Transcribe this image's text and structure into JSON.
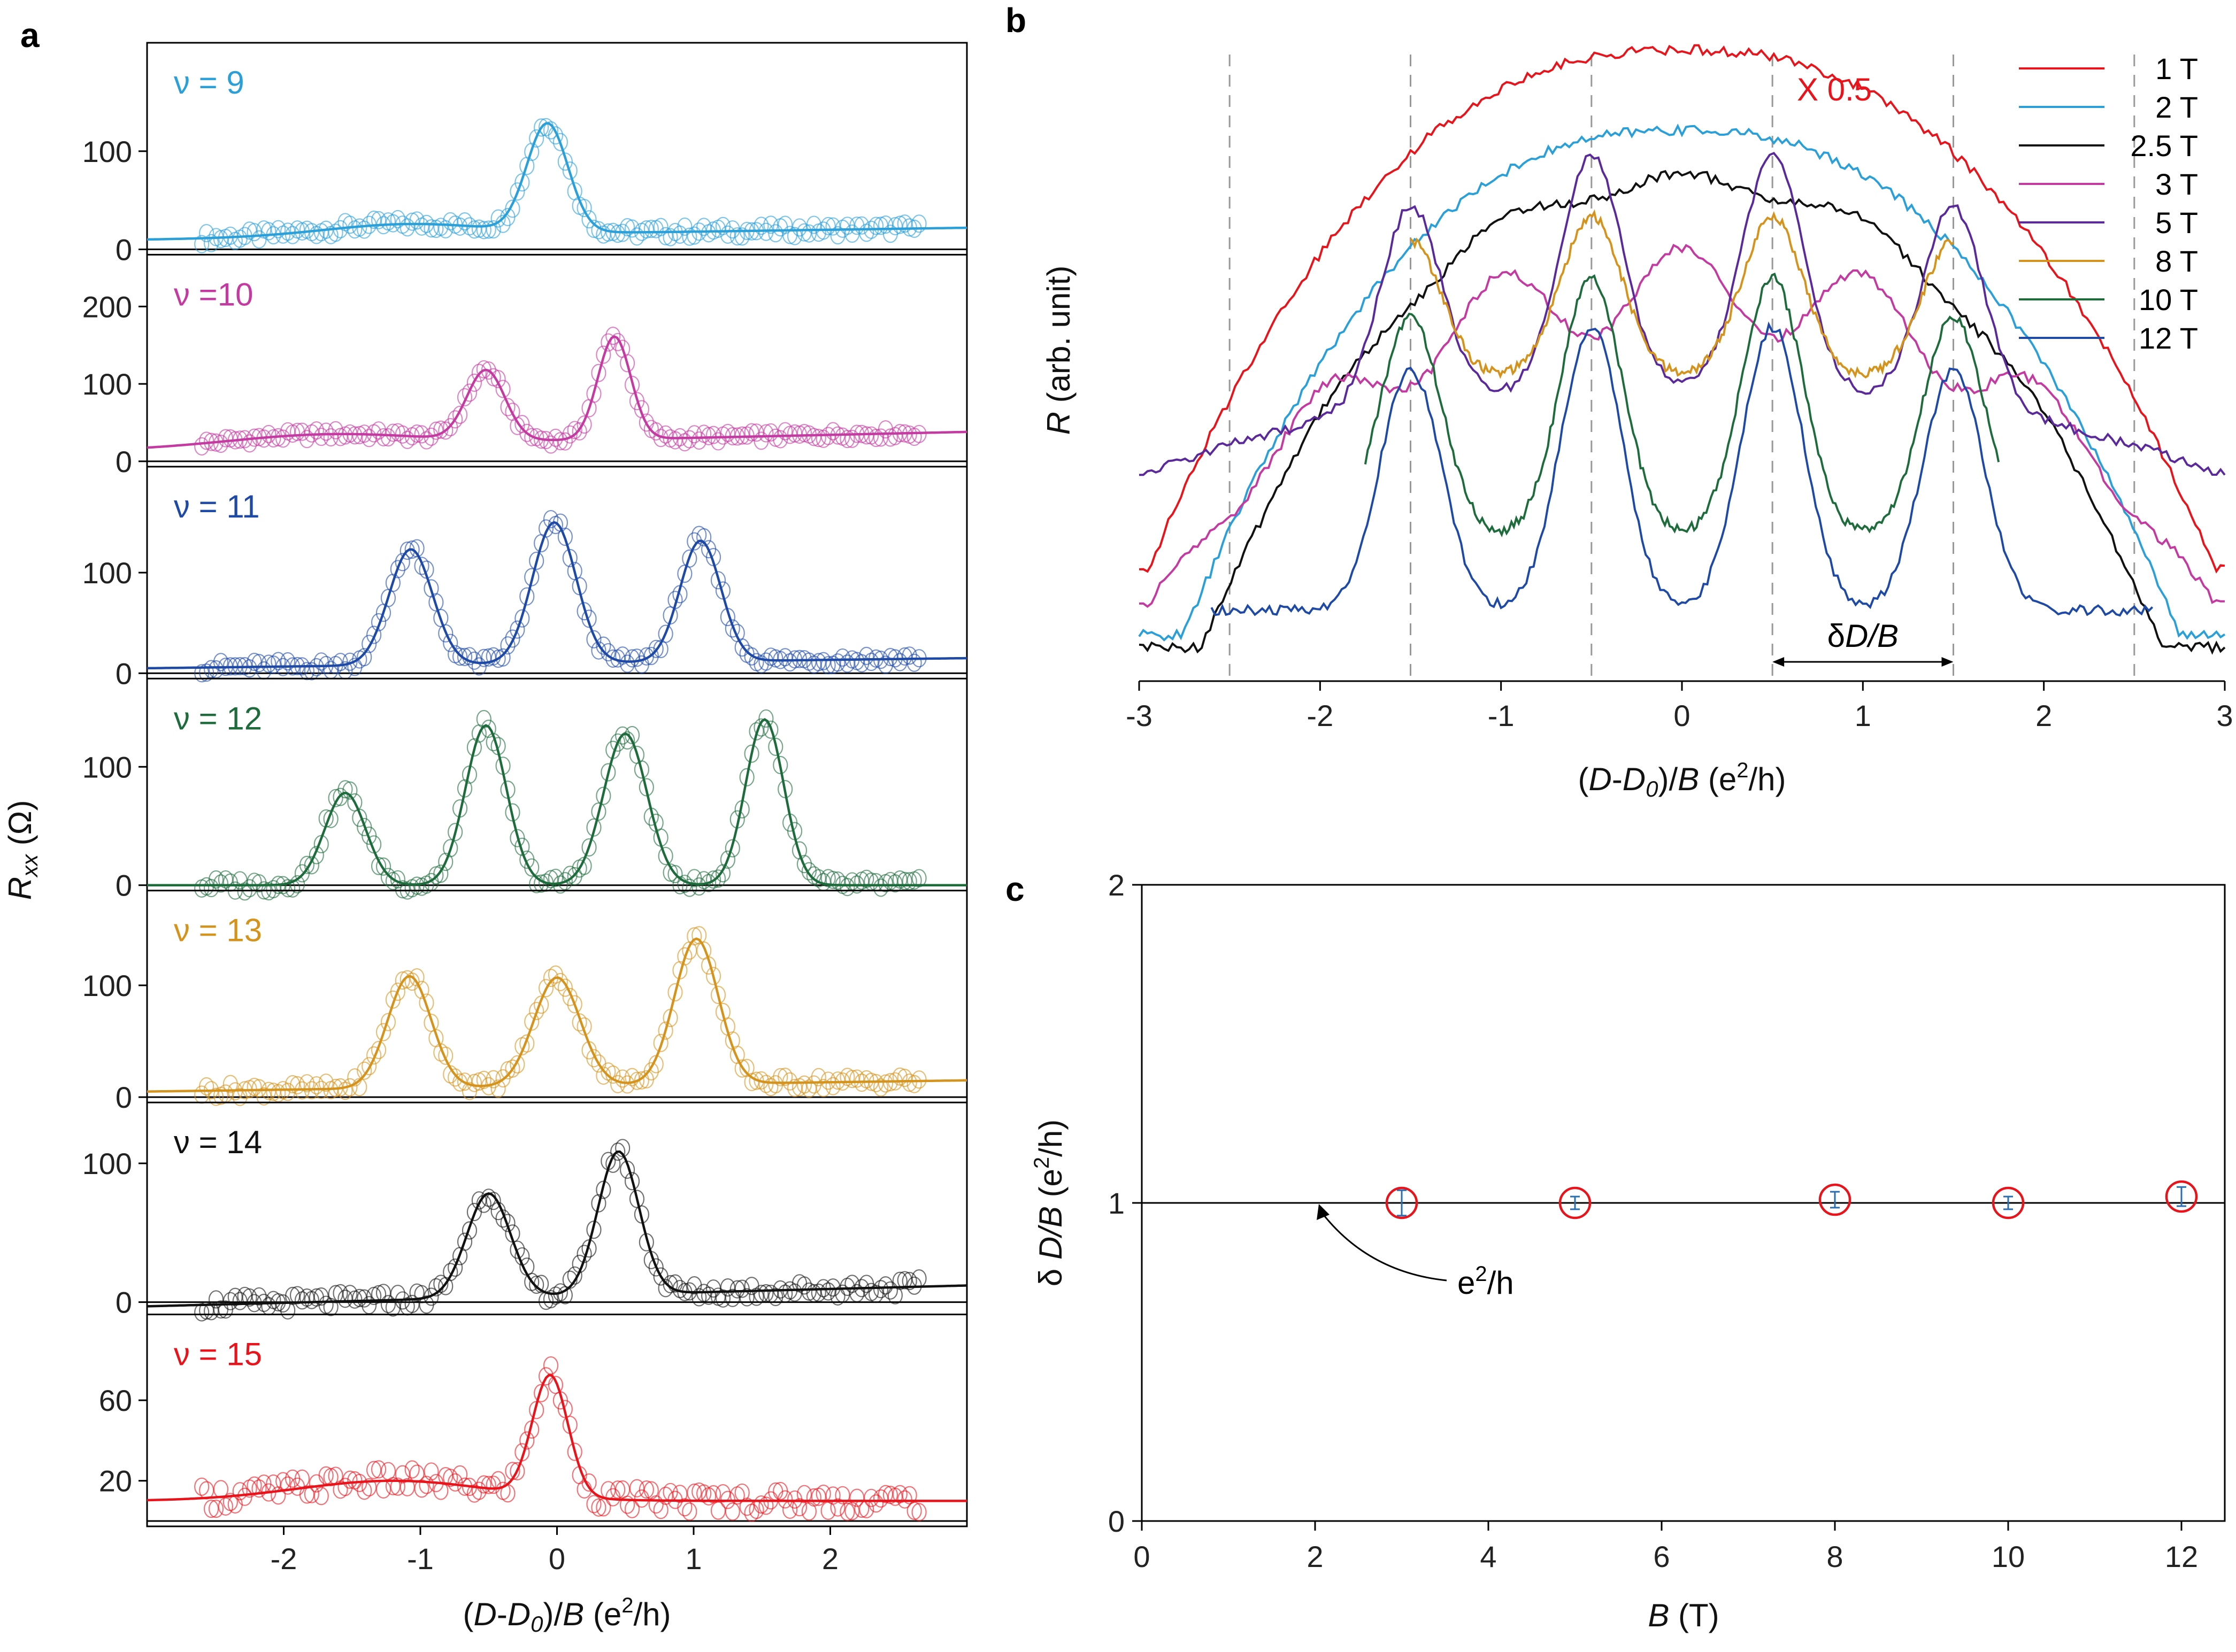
{
  "panel_labels": {
    "a": "a",
    "b": "b",
    "c": "c"
  },
  "chart_data": [
    {
      "panel": "a",
      "type": "line",
      "subtype": "stacked-scatter-with-fit",
      "xlabel_parts": {
        "open": "(",
        "D": "D",
        "minus": "-",
        "D0": "D",
        "zero": "0",
        "close": ")/",
        "B": "B",
        "unit_open": " (e",
        "exp": "2",
        "unit_close": "/h)"
      },
      "ylabel_parts": {
        "R": "R",
        "sub": "xx",
        "unit": " (Ω)"
      },
      "xlim": [
        -3,
        3
      ],
      "x_ticks": [
        -2,
        -1,
        0,
        1,
        2
      ],
      "x_tick_labels": [
        "-2",
        "-1",
        "0",
        "1",
        "2"
      ],
      "data_range": [
        -2.6,
        2.65
      ],
      "subpanels": [
        {
          "nu": "ν = 9",
          "color": "#2a9fd8",
          "ylim": [
            0,
            205
          ],
          "yticks": [
            0,
            100
          ],
          "ytick_labels": [
            "0",
            "100"
          ],
          "baseline": 10,
          "baseline_end": 22,
          "baseline_bump": [
            {
              "c": -1.1,
              "a": 12,
              "s": 0.6
            }
          ],
          "peaks": [
            {
              "c": -0.07,
              "h": 120,
              "w": 0.15
            }
          ]
        },
        {
          "nu": "ν =10",
          "color": "#c33aa0",
          "ylim": [
            0,
            260
          ],
          "yticks": [
            0,
            100,
            200
          ],
          "ytick_labels": [
            "0",
            "100",
            "200"
          ],
          "baseline": 15,
          "baseline_end": 38,
          "baseline_bump": [
            {
              "c": -1.7,
              "a": 15,
              "s": 0.7
            }
          ],
          "peaks": [
            {
              "c": -0.52,
              "h": 105,
              "w": 0.14
            },
            {
              "c": 0.42,
              "h": 148,
              "w": 0.12
            }
          ]
        },
        {
          "nu": "ν = 11",
          "color": "#1e4aa6",
          "ylim": [
            0,
            200
          ],
          "yticks": [
            0,
            100
          ],
          "ytick_labels": [
            "0",
            "100"
          ],
          "baseline": 5,
          "baseline_end": 15,
          "baseline_bump": [],
          "peaks": [
            {
              "c": -1.07,
              "h": 120,
              "w": 0.16
            },
            {
              "c": -0.02,
              "h": 145,
              "w": 0.16
            },
            {
              "c": 1.05,
              "h": 125,
              "w": 0.15
            }
          ]
        },
        {
          "nu": "ν = 12",
          "color": "#1e6b3c",
          "ylim": [
            0,
            170
          ],
          "yticks": [
            0,
            100
          ],
          "ytick_labels": [
            "0",
            "100"
          ],
          "baseline": 0,
          "baseline_end": 0,
          "baseline_bump": [],
          "peaks": [
            {
              "c": -1.55,
              "h": 78,
              "w": 0.15
            },
            {
              "c": -0.52,
              "h": 135,
              "w": 0.15
            },
            {
              "c": 0.5,
              "h": 128,
              "w": 0.16
            },
            {
              "c": 1.52,
              "h": 140,
              "w": 0.14
            }
          ]
        },
        {
          "nu": "ν = 13",
          "color": "#d4931c",
          "ylim": [
            0,
            180
          ],
          "yticks": [
            0,
            100
          ],
          "ytick_labels": [
            "0",
            "100"
          ],
          "baseline": 5,
          "baseline_end": 15,
          "baseline_bump": [],
          "peaks": [
            {
              "c": -1.08,
              "h": 105,
              "w": 0.16
            },
            {
              "c": 0.0,
              "h": 102,
              "w": 0.17
            },
            {
              "c": 1.02,
              "h": 135,
              "w": 0.16
            }
          ]
        },
        {
          "nu": "ν = 14",
          "color": "#111111",
          "ylim": [
            -5,
            140
          ],
          "yticks": [
            0,
            100
          ],
          "ytick_labels": [
            "0",
            "100"
          ],
          "baseline": -3,
          "baseline_end": 12,
          "baseline_bump": [],
          "peaks": [
            {
              "c": -0.5,
              "h": 72,
              "w": 0.16
            },
            {
              "c": 0.45,
              "h": 100,
              "w": 0.15
            }
          ]
        },
        {
          "nu": "ν = 15",
          "color": "#e8141c",
          "ylim": [
            0,
            100
          ],
          "yticks": [
            20,
            60
          ],
          "ytick_labels": [
            "20",
            "60"
          ],
          "baseline": 10,
          "baseline_end": 10,
          "baseline_bump": [
            {
              "c": -1.2,
              "a": 10,
              "s": 0.7
            }
          ],
          "peaks": [
            {
              "c": -0.05,
              "h": 70,
              "w": 0.13
            }
          ]
        }
      ]
    },
    {
      "panel": "b",
      "type": "line",
      "xlabel_parts": {
        "open": "(",
        "D": "D",
        "minus": "-",
        "D0": "D",
        "zero": "0",
        "close": ")/",
        "B": "B",
        "unit_open": " (e",
        "exp": "2",
        "unit_close": "/h)"
      },
      "ylabel_parts": {
        "R": "R",
        "unit": " (arb. unit)"
      },
      "xlim": [
        -3,
        3
      ],
      "ylim": [
        0,
        100
      ],
      "x_ticks": [
        -3,
        -2,
        -1,
        0,
        1,
        2,
        3
      ],
      "x_tick_labels": [
        "-3",
        "-2",
        "-1",
        "0",
        "1",
        "2",
        "3"
      ],
      "dashed_lines_x": [
        -2.5,
        -1.5,
        -0.5,
        0.5,
        1.5,
        2.5
      ],
      "annotation_scale": "X 0.5",
      "spacing_annotation": {
        "delta": "δ",
        "text": "D/B",
        "from": 0.5,
        "to": 1.5,
        "y": 10
      },
      "series": [
        {
          "name": "1 T",
          "color": "#e8141c",
          "x_range": [
            -3.0,
            3.0
          ],
          "offset": 25,
          "envelope": 74,
          "env_width": 1.55,
          "dip_amp": 0,
          "peak_amp": 0,
          "end_level": 15
        },
        {
          "name": "2 T",
          "color": "#2a9fd8",
          "x_range": [
            -3.0,
            3.0
          ],
          "offset": 10,
          "envelope": 76,
          "env_width": 1.45,
          "dip_amp": 0,
          "peak_amp": 0,
          "end_level": 4
        },
        {
          "name": "2.5 T",
          "color": "#111111",
          "x_range": [
            -3.0,
            3.0
          ],
          "offset": 6,
          "envelope": 73,
          "env_width": 1.4,
          "dip_amp": 3,
          "peak_amp": 0,
          "end_level": 2
        },
        {
          "name": "3 T",
          "color": "#c33aa0",
          "x_range": [
            -3.0,
            3.0
          ],
          "offset": 9,
          "envelope": 58,
          "env_width": 1.55,
          "dip_amp": 14,
          "peak_amp": 0,
          "end_level": 9
        },
        {
          "name": "5 T",
          "color": "#5a2a9a",
          "x_range": [
            -3.0,
            3.0
          ],
          "offset": 19,
          "envelope": 25,
          "env_width": 2.0,
          "dip_amp": 0,
          "peak_amp": 38,
          "end_level": 19
        },
        {
          "name": "8 T",
          "color": "#d4931c",
          "x_range": [
            -1.5,
            1.5
          ],
          "offset": 46,
          "envelope": 0,
          "env_width": 1.0,
          "dip_amp": 0,
          "peak_amp": 26,
          "end_level": 46
        },
        {
          "name": "10 T",
          "color": "#1e6b3c",
          "x_range": [
            -1.75,
            1.75
          ],
          "offset": 20,
          "envelope": 0,
          "env_width": 1.0,
          "dip_amp": 0,
          "peak_amp": 42,
          "end_level": 20
        },
        {
          "name": "12 T",
          "color": "#1e4aa6",
          "x_range": [
            -2.6,
            2.6
          ],
          "offset": 8,
          "envelope": 0,
          "env_width": 1.0,
          "dip_amp": 0,
          "peak_amp": 46,
          "end_level": 8
        }
      ]
    },
    {
      "panel": "c",
      "type": "scatter",
      "xlabel_parts": {
        "B": "B",
        "unit": " (T)"
      },
      "ylabel_parts": {
        "delta": "δ ",
        "text": "D/B",
        "unit_open": " (e",
        "exp": "2",
        "unit_close": "/h)"
      },
      "xlim": [
        0,
        12.5
      ],
      "ylim": [
        0,
        2
      ],
      "x_ticks": [
        0,
        2,
        4,
        6,
        8,
        10,
        12
      ],
      "x_tick_labels": [
        "0",
        "2",
        "4",
        "6",
        "8",
        "10",
        "12"
      ],
      "y_ticks": [
        0,
        1,
        2
      ],
      "y_tick_labels": [
        "0",
        "1",
        "2"
      ],
      "reference_line_y": 1,
      "reference_label": {
        "base": "e",
        "exp": "2",
        "tail": "/h"
      },
      "points": [
        {
          "x": 3,
          "y": 1.0,
          "err": 0.04
        },
        {
          "x": 5,
          "y": 1.0,
          "err": 0.02
        },
        {
          "x": 8,
          "y": 1.01,
          "err": 0.025
        },
        {
          "x": 10,
          "y": 1.0,
          "err": 0.02
        },
        {
          "x": 12,
          "y": 1.02,
          "err": 0.03
        }
      ],
      "marker_color": "#e8141c",
      "errorbar_color": "#2a6fb0"
    }
  ]
}
